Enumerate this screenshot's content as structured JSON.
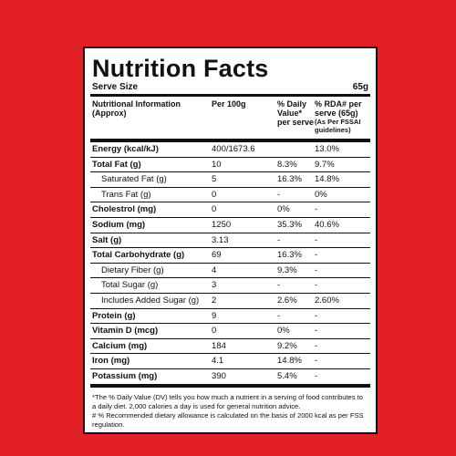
{
  "label": {
    "title": "Nutrition Facts",
    "serve_size_label": "Serve Size",
    "serve_size_value": "65g",
    "columns": {
      "c1": "Nutritional Information (Approx)",
      "c2": "Per 100g",
      "c3": "% Daily Value* per serve",
      "c4_main": "% RDA# per serve (65g)",
      "c4_sub": "(As Per FSSAI guidelines)"
    },
    "rows": [
      {
        "name": "Energy (kcal/kJ)",
        "per100": "400/1673.6",
        "dv": "",
        "rda": "13.0%",
        "bold": true,
        "indent": false
      },
      {
        "name": "Total Fat (g)",
        "per100": "10",
        "dv": "8.3%",
        "rda": "9.7%",
        "bold": true,
        "indent": false
      },
      {
        "name": "Saturated Fat (g)",
        "per100": "5",
        "dv": "16.3%",
        "rda": "14.8%",
        "bold": false,
        "indent": true
      },
      {
        "name": "Trans Fat (g)",
        "per100": "0",
        "dv": "-",
        "rda": "0%",
        "bold": false,
        "indent": true
      },
      {
        "name": "Cholestrol (mg)",
        "per100": "0",
        "dv": "0%",
        "rda": "-",
        "bold": true,
        "indent": false
      },
      {
        "name": "Sodium (mg)",
        "per100": "1250",
        "dv": "35.3%",
        "rda": "40.6%",
        "bold": true,
        "indent": false
      },
      {
        "name": "Salt (g)",
        "per100": "3.13",
        "dv": "-",
        "rda": "-",
        "bold": true,
        "indent": false
      },
      {
        "name": "Total Carbohydrate (g)",
        "per100": "69",
        "dv": "16.3%",
        "rda": "-",
        "bold": true,
        "indent": false
      },
      {
        "name": "Dietary Fiber (g)",
        "per100": "4",
        "dv": "9.3%",
        "rda": "-",
        "bold": false,
        "indent": true
      },
      {
        "name": "Total Sugar (g)",
        "per100": "3",
        "dv": "-",
        "rda": "-",
        "bold": false,
        "indent": true
      },
      {
        "name": "Includes Added Sugar (g)",
        "per100": "2",
        "dv": "2.6%",
        "rda": "2.60%",
        "bold": false,
        "indent": true
      },
      {
        "name": "Protein (g)",
        "per100": "9",
        "dv": "-",
        "rda": "-",
        "bold": true,
        "indent": false
      },
      {
        "name": "Vitamin D (mcg)",
        "per100": "0",
        "dv": "0%",
        "rda": "-",
        "bold": true,
        "indent": false
      },
      {
        "name": "Calcium (mg)",
        "per100": "184",
        "dv": "9.2%",
        "rda": "-",
        "bold": true,
        "indent": false
      },
      {
        "name": "Iron (mg)",
        "per100": "4.1",
        "dv": "14.8%",
        "rda": "-",
        "bold": true,
        "indent": false
      },
      {
        "name": "Potassium (mg)",
        "per100": "390",
        "dv": "5.4%",
        "rda": "-",
        "bold": true,
        "indent": false
      }
    ],
    "footnote_1": "*The % Daily Value (DV) tells you how much a nutrient in a serving of food contributes to a daily diet. 2,000 calories a day is used for general nutrition advice.",
    "footnote_2": "# % Recommended dietary allowance is calculated on the basis of 2000 kcal as per FSS regulation."
  }
}
